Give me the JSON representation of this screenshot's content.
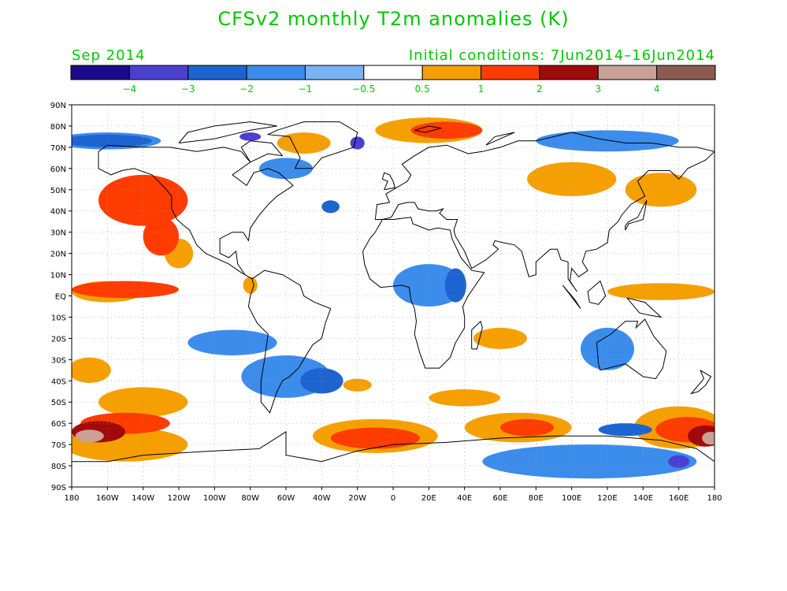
{
  "title": "CFSv2 monthly T2m anomalies (K)",
  "valid_month": "Sep 2014",
  "initial_conditions": "Initial conditions: 7Jun2014–16Jun2014",
  "colorbar": {
    "colors": [
      "#1d0a8c",
      "#4b3fd2",
      "#1e64d0",
      "#3c8cec",
      "#78b4f4",
      "#ffffff",
      "#f5a000",
      "#ff3c00",
      "#a00a0a",
      "#c8a096",
      "#8c5a50"
    ],
    "labels": [
      "−4",
      "−3",
      "−2",
      "−1",
      "−0.5",
      "0.5",
      "1",
      "2",
      "3",
      "4"
    ]
  },
  "axes": {
    "lat_labels": [
      "90N",
      "80N",
      "70N",
      "60N",
      "50N",
      "40N",
      "30N",
      "20N",
      "10N",
      "EQ",
      "10S",
      "20S",
      "30S",
      "40S",
      "50S",
      "60S",
      "70S",
      "80S",
      "90S"
    ],
    "lon_labels": [
      "180",
      "160W",
      "140W",
      "120W",
      "100W",
      "80W",
      "60W",
      "40W",
      "20W",
      "0",
      "20E",
      "40E",
      "60E",
      "80E",
      "100E",
      "120E",
      "140E",
      "160E",
      "180"
    ]
  },
  "anomaly_regions": [
    {
      "level": 1,
      "lon": -140,
      "lat": 45,
      "rx": 25,
      "ry": 12
    },
    {
      "level": 1,
      "lon": -130,
      "lat": 28,
      "rx": 10,
      "ry": 9
    },
    {
      "level": 1,
      "lon": -150,
      "lat": 3,
      "rx": 30,
      "ry": 4
    },
    {
      "level": 0,
      "lon": -160,
      "lat": 2,
      "rx": 20,
      "ry": 5
    },
    {
      "level": 0,
      "lon": -120,
      "lat": 20,
      "rx": 8,
      "ry": 7
    },
    {
      "level": 0,
      "lon": -80,
      "lat": 5,
      "rx": 4,
      "ry": 4
    },
    {
      "level": 0,
      "lon": -170,
      "lat": -35,
      "rx": 12,
      "ry": 6
    },
    {
      "level": 0,
      "lon": -20,
      "lat": -42,
      "rx": 8,
      "ry": 3
    },
    {
      "level": 0,
      "lon": 100,
      "lat": 55,
      "rx": 25,
      "ry": 8
    },
    {
      "level": 0,
      "lon": 150,
      "lat": 50,
      "rx": 20,
      "ry": 8
    },
    {
      "level": 0,
      "lon": 150,
      "lat": 2,
      "rx": 30,
      "ry": 4
    },
    {
      "level": 0,
      "lon": 60,
      "lat": -20,
      "rx": 15,
      "ry": 5
    },
    {
      "level": 0,
      "lon": 40,
      "lat": -48,
      "rx": 20,
      "ry": 4
    },
    {
      "level": 0,
      "lon": -140,
      "lat": -50,
      "rx": 25,
      "ry": 7
    },
    {
      "level": 0,
      "lon": -150,
      "lat": -70,
      "rx": 35,
      "ry": 8
    },
    {
      "level": 0,
      "lon": -10,
      "lat": -66,
      "rx": 35,
      "ry": 8
    },
    {
      "level": 0,
      "lon": 70,
      "lat": -62,
      "rx": 30,
      "ry": 7
    },
    {
      "level": 0,
      "lon": 160,
      "lat": -62,
      "rx": 25,
      "ry": 10
    },
    {
      "level": 0,
      "lon": 20,
      "lat": 78,
      "rx": 30,
      "ry": 6
    },
    {
      "level": 0,
      "lon": -50,
      "lat": 72,
      "rx": 15,
      "ry": 5
    },
    {
      "level": 1,
      "lon": 30,
      "lat": 78,
      "rx": 20,
      "ry": 4
    },
    {
      "level": 1,
      "lon": -150,
      "lat": -60,
      "rx": 25,
      "ry": 5
    },
    {
      "level": 1,
      "lon": -10,
      "lat": -67,
      "rx": 25,
      "ry": 5
    },
    {
      "level": 1,
      "lon": 75,
      "lat": -62,
      "rx": 15,
      "ry": 4
    },
    {
      "level": 1,
      "lon": 165,
      "lat": -63,
      "rx": 18,
      "ry": 6
    },
    {
      "level": 2,
      "lon": -165,
      "lat": -64,
      "rx": 15,
      "ry": 5
    },
    {
      "level": 2,
      "lon": 175,
      "lat": -66,
      "rx": 10,
      "ry": 5
    },
    {
      "level": 3,
      "lon": -170,
      "lat": -66,
      "rx": 8,
      "ry": 3
    },
    {
      "level": 3,
      "lon": 178,
      "lat": -67,
      "rx": 5,
      "ry": 3
    },
    {
      "level": -1,
      "lon": -160,
      "lat": 73,
      "rx": 30,
      "ry": 4
    },
    {
      "level": -1,
      "lon": 120,
      "lat": 73,
      "rx": 40,
      "ry": 5
    },
    {
      "level": -1,
      "lon": -60,
      "lat": -38,
      "rx": 25,
      "ry": 10
    },
    {
      "level": -1,
      "lon": 120,
      "lat": -25,
      "rx": 15,
      "ry": 10
    },
    {
      "level": -1,
      "lon": -90,
      "lat": -22,
      "rx": 25,
      "ry": 6
    },
    {
      "level": -1,
      "lon": 20,
      "lat": 5,
      "rx": 20,
      "ry": 10
    },
    {
      "level": -1,
      "lon": 110,
      "lat": -78,
      "rx": 60,
      "ry": 8
    },
    {
      "level": -1,
      "lon": -60,
      "lat": 60,
      "rx": 15,
      "ry": 5
    },
    {
      "level": -2,
      "lon": -40,
      "lat": -40,
      "rx": 12,
      "ry": 6
    },
    {
      "level": -2,
      "lon": -160,
      "lat": 73,
      "rx": 25,
      "ry": 3
    },
    {
      "level": -2,
      "lon": 130,
      "lat": -63,
      "rx": 15,
      "ry": 3
    },
    {
      "level": -2,
      "lon": 35,
      "lat": 5,
      "rx": 6,
      "ry": 8
    },
    {
      "level": -2,
      "lon": -35,
      "lat": 42,
      "rx": 5,
      "ry": 3
    },
    {
      "level": -3,
      "lon": -20,
      "lat": 72,
      "rx": 4,
      "ry": 3
    },
    {
      "level": -3,
      "lon": -80,
      "lat": 75,
      "rx": 6,
      "ry": 2
    },
    {
      "level": -3,
      "lon": 160,
      "lat": -78,
      "rx": 6,
      "ry": 3
    }
  ]
}
